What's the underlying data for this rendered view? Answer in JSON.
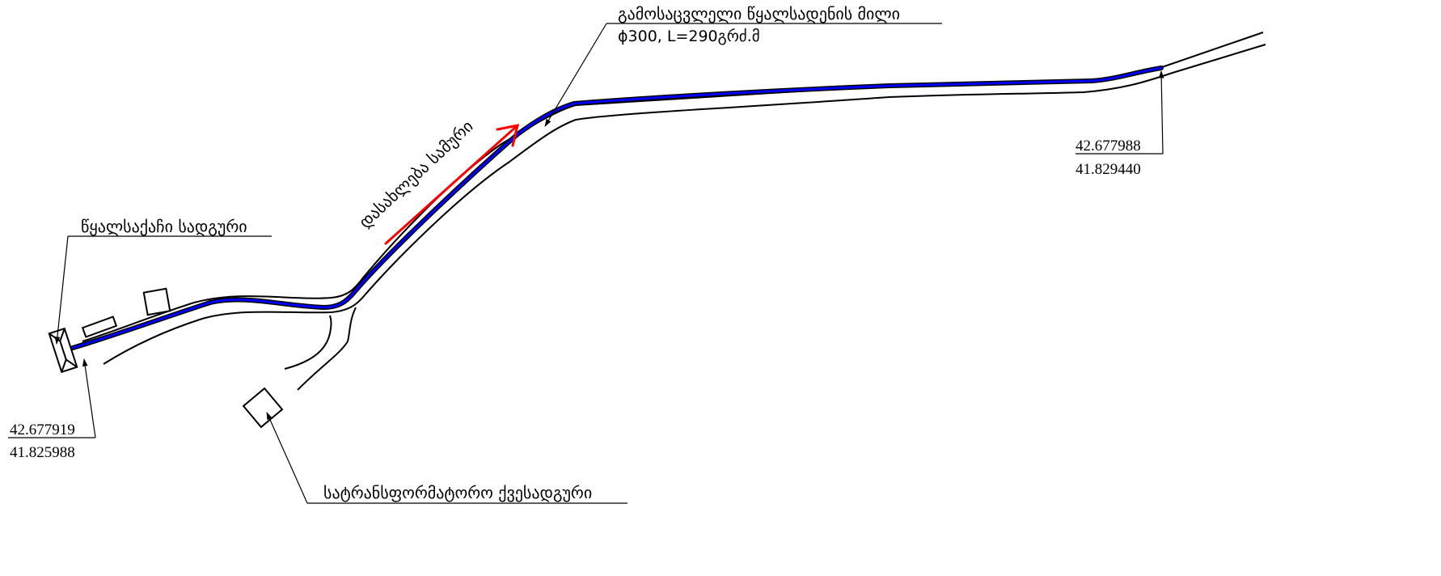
{
  "labels": {
    "pipe_title": "გამოსაცვლელი წყალსადენის მილი",
    "pipe_spec": "ϕ300, L=290გრძ.მ",
    "flow_direction": "დასახლება სამური",
    "pump_station": "წყალსაქაჩი სადგური",
    "transformer": "სატრანსფორმატორო ქვესადგური"
  },
  "coordinates": {
    "start": {
      "lat": "42.677919",
      "lon": "41.825988"
    },
    "end": {
      "lat": "42.677988",
      "lon": "41.829440"
    }
  },
  "colors": {
    "pipe": "#0000ff",
    "arrow": "#ff0000",
    "line": "#000000",
    "background": "#ffffff"
  }
}
